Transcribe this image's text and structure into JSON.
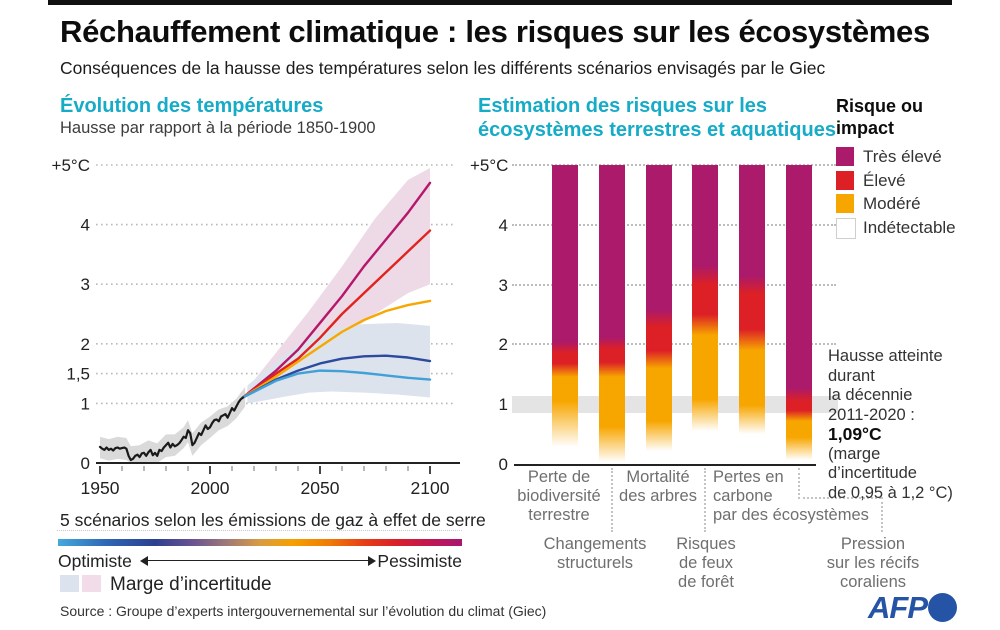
{
  "header": {
    "title": "Réchauffement climatique : les risques sur les écosystèmes",
    "subtitle": "Conséquences de la hausse des températures selon les différents scénarios envisagés par le Giec"
  },
  "footer": {
    "source": "Source : Groupe d’experts intergouvernemental sur l’évolution du climat (Giec)",
    "brand": "AFP"
  },
  "chart_data": [
    {
      "type": "line",
      "title": "Évolution des températures",
      "subtitle": "Hausse par rapport à la période 1850-1900",
      "footer": "5 scénarios selon les émissions de gaz à effet de serre",
      "gradient_legend": {
        "left": "Optimiste",
        "right": "Pessimiste"
      },
      "uncertainty_label": "Marge d’incertitude",
      "x_range": [
        1950,
        2100
      ],
      "y_range": [
        0,
        5
      ],
      "yticks": [
        {
          "v": 5,
          "label": "+5°C"
        },
        {
          "v": 4,
          "label": "4"
        },
        {
          "v": 3,
          "label": "3"
        },
        {
          "v": 2,
          "label": "2"
        },
        {
          "v": 1.5,
          "label": "1,5"
        },
        {
          "v": 1,
          "label": "1"
        },
        {
          "v": 0,
          "label": "0"
        }
      ],
      "xticks": [
        "1950",
        "2000",
        "2050",
        "2100"
      ],
      "bands": [
        {
          "name": "incertitude-pessimiste",
          "color": "#eedae6",
          "x": [
            2017,
            2030,
            2045,
            2060,
            2075,
            2090,
            2100
          ],
          "upper": [
            1.25,
            1.85,
            2.55,
            3.3,
            4.1,
            4.75,
            4.95
          ],
          "lower": [
            1.0,
            1.3,
            1.7,
            2.1,
            2.5,
            2.85,
            3.0
          ]
        },
        {
          "name": "incertitude-optimiste",
          "color": "#dde3ed",
          "x": [
            2017,
            2025,
            2035,
            2045,
            2055,
            2070,
            2085,
            2100
          ],
          "upper": [
            1.3,
            1.55,
            1.85,
            2.1,
            2.25,
            2.33,
            2.35,
            2.3
          ],
          "lower": [
            1.0,
            1.05,
            1.12,
            1.18,
            1.2,
            1.18,
            1.15,
            1.1
          ]
        },
        {
          "name": "incertitude-historique",
          "color": "#dadada",
          "x": [
            1950,
            1954,
            1958,
            1962,
            1964,
            1968,
            1972,
            1976,
            1980,
            1984,
            1988,
            1990,
            1992,
            1996,
            2000,
            2004,
            2008,
            2012,
            2014,
            2016
          ],
          "upper": [
            0.44,
            0.4,
            0.44,
            0.42,
            0.28,
            0.3,
            0.38,
            0.33,
            0.48,
            0.48,
            0.6,
            0.72,
            0.5,
            0.68,
            0.78,
            0.9,
            0.95,
            1.08,
            1.18,
            1.28
          ],
          "lower": [
            0.08,
            0.04,
            0.07,
            0.05,
            0,
            0,
            0.02,
            0,
            0.1,
            0.12,
            0.25,
            0.35,
            0.12,
            0.3,
            0.42,
            0.55,
            0.62,
            0.75,
            0.85,
            0.95
          ]
        }
      ],
      "series": [
        {
          "name": "scenario-pessimiste",
          "color": "#b5186b",
          "width": 2.4,
          "x": [
            2015,
            2030,
            2040,
            2050,
            2060,
            2070,
            2080,
            2090,
            2100
          ],
          "y": [
            1.1,
            1.55,
            1.9,
            2.35,
            2.8,
            3.3,
            3.75,
            4.2,
            4.7
          ]
        },
        {
          "name": "scenario-eleve",
          "color": "#e0231e",
          "width": 2.4,
          "x": [
            2015,
            2030,
            2040,
            2050,
            2060,
            2070,
            2080,
            2090,
            2100
          ],
          "y": [
            1.1,
            1.5,
            1.75,
            2.1,
            2.5,
            2.85,
            3.2,
            3.55,
            3.9
          ]
        },
        {
          "name": "scenario-intermediaire",
          "color": "#f7a800",
          "width": 2.4,
          "x": [
            2015,
            2030,
            2040,
            2050,
            2060,
            2070,
            2080,
            2090,
            2100
          ],
          "y": [
            1.1,
            1.45,
            1.7,
            1.95,
            2.2,
            2.4,
            2.55,
            2.65,
            2.72
          ]
        },
        {
          "name": "scenario-bas",
          "color": "#2c4a9e",
          "width": 2.4,
          "x": [
            2015,
            2030,
            2040,
            2050,
            2060,
            2070,
            2080,
            2090,
            2100
          ],
          "y": [
            1.1,
            1.4,
            1.55,
            1.67,
            1.75,
            1.79,
            1.8,
            1.77,
            1.71
          ]
        },
        {
          "name": "scenario-optimiste",
          "color": "#41a0d8",
          "width": 2.4,
          "x": [
            2015,
            2030,
            2040,
            2050,
            2060,
            2070,
            2080,
            2090,
            2100
          ],
          "y": [
            1.1,
            1.38,
            1.5,
            1.55,
            1.54,
            1.51,
            1.47,
            1.43,
            1.4
          ]
        },
        {
          "name": "observations",
          "color": "#1a1a1a",
          "width": 2.2,
          "x": [
            1950,
            1951,
            1952,
            1953,
            1954,
            1955,
            1956,
            1957,
            1958,
            1959,
            1960,
            1961,
            1962,
            1963,
            1964,
            1965,
            1966,
            1967,
            1968,
            1969,
            1970,
            1971,
            1972,
            1973,
            1974,
            1975,
            1976,
            1977,
            1978,
            1979,
            1980,
            1981,
            1982,
            1983,
            1984,
            1985,
            1986,
            1987,
            1988,
            1989,
            1990,
            1991,
            1992,
            1993,
            1994,
            1995,
            1996,
            1997,
            1998,
            1999,
            2000,
            2001,
            2002,
            2003,
            2004,
            2005,
            2006,
            2007,
            2008,
            2009,
            2010,
            2011,
            2012,
            2013,
            2014,
            2015
          ],
          "y": [
            0.27,
            0.24,
            0.22,
            0.26,
            0.22,
            0.24,
            0.21,
            0.25,
            0.26,
            0.24,
            0.25,
            0.26,
            0.24,
            0.12,
            0.05,
            0.07,
            0.12,
            0.14,
            0.1,
            0.16,
            0.17,
            0.12,
            0.18,
            0.22,
            0.13,
            0.17,
            0.12,
            0.22,
            0.2,
            0.26,
            0.3,
            0.34,
            0.26,
            0.32,
            0.28,
            0.3,
            0.33,
            0.38,
            0.44,
            0.42,
            0.55,
            0.5,
            0.3,
            0.34,
            0.42,
            0.5,
            0.47,
            0.55,
            0.63,
            0.57,
            0.6,
            0.67,
            0.72,
            0.73,
            0.7,
            0.78,
            0.8,
            0.82,
            0.76,
            0.84,
            0.92,
            0.88,
            0.95,
            1.02,
            1.07,
            1.1
          ]
        }
      ]
    },
    {
      "type": "gradient-risk-bars",
      "title_lines": [
        "Estimation des risques sur les",
        "écosystèmes terrestres et aquatiques"
      ],
      "yticks": [
        {
          "v": 5,
          "label": "+5°C"
        },
        {
          "v": 4,
          "label": "4"
        },
        {
          "v": 3,
          "label": "3"
        },
        {
          "v": 2,
          "label": "2"
        },
        {
          "v": 1,
          "label": "1"
        },
        {
          "v": 0,
          "label": "0"
        }
      ],
      "palette": {
        "te": "#ab1a6b",
        "e": "#dc2026",
        "m": "#f7a600",
        "i": "#ffffff"
      },
      "legend": {
        "title_lines": [
          "Risque ou",
          "impact"
        ],
        "items": [
          {
            "label": "Très élevé",
            "key": "te"
          },
          {
            "label": "Élevé",
            "key": "e"
          },
          {
            "label": "Modéré",
            "key": "m"
          },
          {
            "label": "Indétectable",
            "key": "i"
          }
        ]
      },
      "bars": [
        {
          "label": "Perte de biodiversité terrestre",
          "label_lines": [
            "Perte de",
            "biodiversité",
            "terrestre"
          ],
          "stops": [
            [
              5,
              "te"
            ],
            [
              2.05,
              "te"
            ],
            [
              1.85,
              "e"
            ],
            [
              1.68,
              "e"
            ],
            [
              1.45,
              "m"
            ],
            [
              1.05,
              "m"
            ],
            [
              0.28,
              "i"
            ]
          ]
        },
        {
          "label": "Changements structurels",
          "label_lines": [
            "Changements",
            "structurels"
          ],
          "stops": [
            [
              5,
              "te"
            ],
            [
              2.12,
              "te"
            ],
            [
              1.92,
              "e"
            ],
            [
              1.7,
              "e"
            ],
            [
              1.45,
              "m"
            ],
            [
              0.62,
              "m"
            ],
            [
              0.03,
              "i"
            ]
          ]
        },
        {
          "label": "Mortalité des arbres",
          "label_lines": [
            "Mortalité",
            "des arbres"
          ],
          "stops": [
            [
              5,
              "te"
            ],
            [
              2.58,
              "te"
            ],
            [
              2.3,
              "e"
            ],
            [
              1.9,
              "e"
            ],
            [
              1.6,
              "m"
            ],
            [
              0.72,
              "m"
            ],
            [
              0.22,
              "i"
            ]
          ]
        },
        {
          "label": "Risques de feux de forêt",
          "label_lines": [
            "Risques",
            "de feux",
            "de forêt"
          ],
          "stops": [
            [
              5,
              "te"
            ],
            [
              3.32,
              "te"
            ],
            [
              3.0,
              "e"
            ],
            [
              2.5,
              "e"
            ],
            [
              2.15,
              "m"
            ],
            [
              1.08,
              "m"
            ],
            [
              0.55,
              "i"
            ]
          ]
        },
        {
          "label": "Pertes en carbone par des écosystèmes",
          "label_lines": [
            "Pertes en",
            "carbone",
            "par des écosystèmes"
          ],
          "stops": [
            [
              5,
              "te"
            ],
            [
              3.15,
              "te"
            ],
            [
              2.85,
              "e"
            ],
            [
              2.25,
              "e"
            ],
            [
              1.9,
              "m"
            ],
            [
              0.98,
              "m"
            ],
            [
              0.5,
              "i"
            ]
          ]
        },
        {
          "label": "Pression sur les récifs coraliens",
          "label_lines": [
            "Pression",
            "sur les récifs",
            "coraliens"
          ],
          "stops": [
            [
              5,
              "te"
            ],
            [
              1.28,
              "te"
            ],
            [
              1.05,
              "e"
            ],
            [
              0.9,
              "e"
            ],
            [
              0.72,
              "m"
            ],
            [
              0.45,
              "m"
            ],
            [
              0.07,
              "i"
            ]
          ]
        }
      ],
      "current_warming_band": {
        "range": [
          0.86,
          1.14
        ],
        "annotation_lines": [
          "Hausse atteinte",
          "durant",
          "la décennie",
          "2011-2020 :",
          "1,09°C",
          "(marge",
          "d’incertitude",
          "de 0,95 à 1,2 °C)"
        ],
        "bold_line": "1,09°C"
      }
    }
  ]
}
